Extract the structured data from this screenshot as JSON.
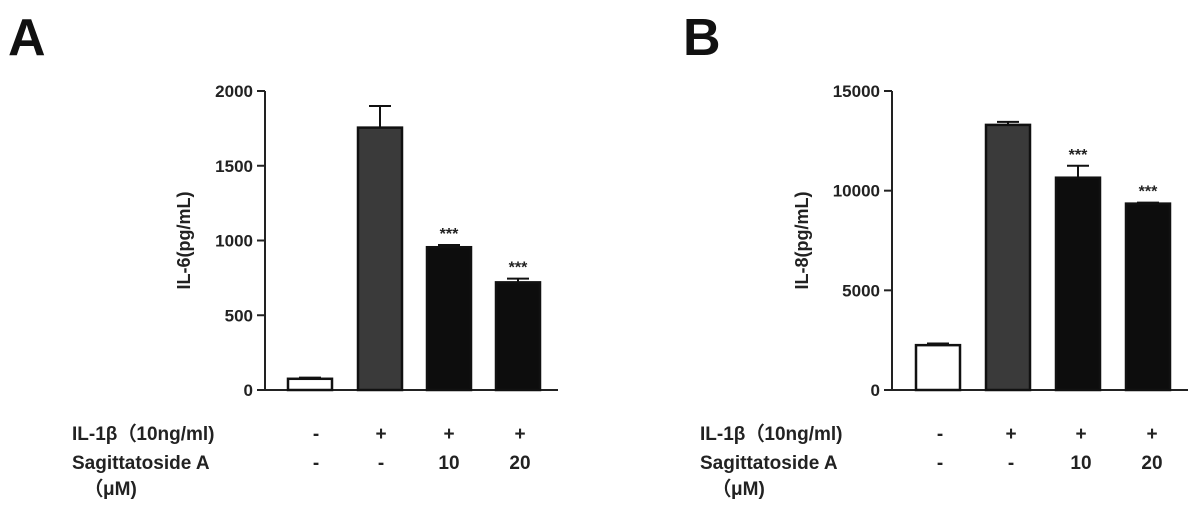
{
  "chart_data": [
    {
      "type": "bar",
      "panel": "A",
      "ylabel": "IL-6(pg/mL)",
      "ylim": [
        0,
        2000
      ],
      "yticks": [
        0,
        500,
        1000,
        1500,
        2000
      ],
      "values": [
        75,
        1755,
        955,
        720
      ],
      "errors": [
        8,
        145,
        15,
        25
      ],
      "significance": [
        "",
        "",
        "***",
        "***"
      ],
      "bar_colors": [
        "#ffffff",
        "#3a3a3a",
        "#0d0d0d",
        "#0d0d0d"
      ],
      "conditions": [
        {
          "label": "IL-1β（10ng/ml)",
          "values": [
            "-",
            "+",
            "+",
            "+"
          ]
        },
        {
          "label": "Sagittatoside A",
          "label2": "（μM)",
          "values": [
            "-",
            "-",
            "10",
            "20"
          ]
        }
      ]
    },
    {
      "type": "bar",
      "panel": "B",
      "ylabel": "IL-8(pg/mL)",
      "ylim": [
        0,
        15000
      ],
      "yticks": [
        0,
        5000,
        10000,
        15000
      ],
      "values": [
        2250,
        13300,
        10650,
        9350
      ],
      "errors": [
        80,
        150,
        600,
        50
      ],
      "significance": [
        "",
        "",
        "***",
        "***"
      ],
      "bar_colors": [
        "#ffffff",
        "#3a3a3a",
        "#0d0d0d",
        "#0d0d0d"
      ],
      "conditions": [
        {
          "label": "IL-1β（10ng/ml)",
          "values": [
            "-",
            "+",
            "+",
            "+"
          ]
        },
        {
          "label": "Sagittatoside A",
          "label2": "（μM)",
          "values": [
            "-",
            "-",
            "10",
            "20"
          ]
        }
      ]
    }
  ]
}
